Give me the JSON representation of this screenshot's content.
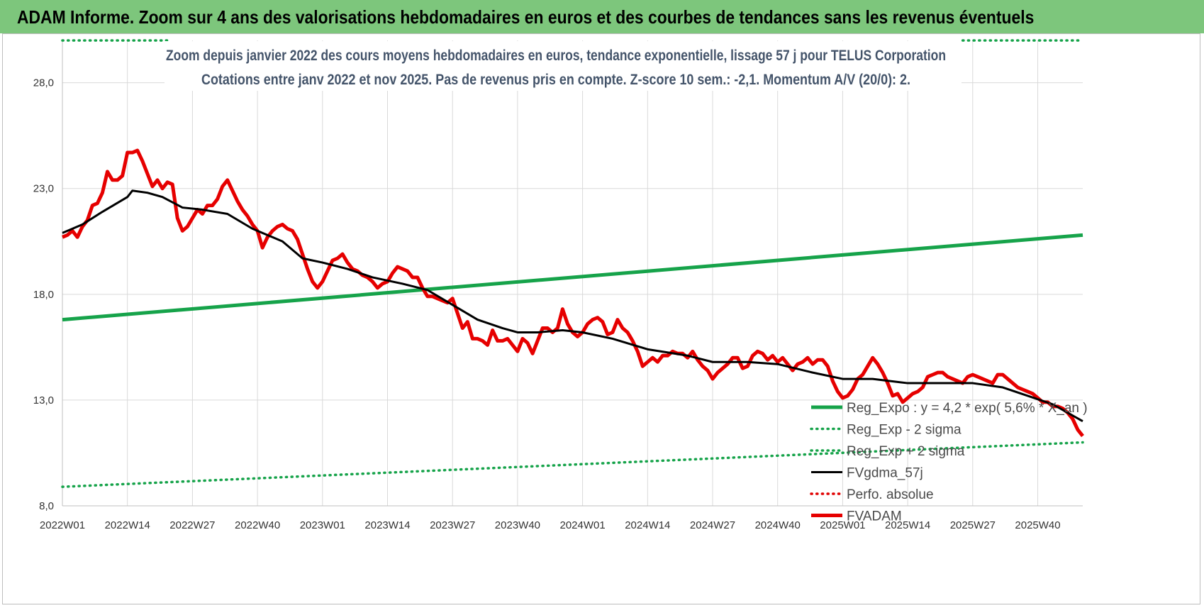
{
  "header": {
    "title": "ADAM Informe. Zoom sur 4 ans des valorisations hebdomadaires en euros et des courbes de tendances sans les revenus éventuels"
  },
  "chart_data": {
    "type": "line",
    "title_lines": [
      "Zoom depuis janvier 2022 des cours moyens hebdomadaires en euros, tendance exponentielle, lissage 57 j pour TELUS Corporation",
      "Cotations entre janv 2022 et nov 2025. Pas de revenus pris en compte. Z-score 10 sem.: -2,1. Momentum A/V (20/0): 2."
    ],
    "ylim": [
      8,
      30
    ],
    "yticks": [
      {
        "value": 8,
        "label": "8,0"
      },
      {
        "value": 13,
        "label": "13,0"
      },
      {
        "value": 18,
        "label": "18,0"
      },
      {
        "value": 23,
        "label": "23,0"
      },
      {
        "value": 28,
        "label": "28,0"
      }
    ],
    "xticks": [
      {
        "week": 0,
        "label": "2022W01"
      },
      {
        "week": 13,
        "label": "2022W14"
      },
      {
        "week": 26,
        "label": "2022W27"
      },
      {
        "week": 39,
        "label": "2022W40"
      },
      {
        "week": 52,
        "label": "2023W01"
      },
      {
        "week": 65,
        "label": "2023W14"
      },
      {
        "week": 78,
        "label": "2023W27"
      },
      {
        "week": 91,
        "label": "2023W40"
      },
      {
        "week": 104,
        "label": "2024W01"
      },
      {
        "week": 117,
        "label": "2024W14"
      },
      {
        "week": 130,
        "label": "2024W27"
      },
      {
        "week": 143,
        "label": "2024W40"
      },
      {
        "week": 156,
        "label": "2025W01"
      },
      {
        "week": 169,
        "label": "2025W14"
      },
      {
        "week": 182,
        "label": "2025W27"
      },
      {
        "week": 195,
        "label": "2025W40"
      }
    ],
    "x_range_weeks": [
      0,
      204
    ],
    "series": [
      {
        "name": "Reg_Expo : y = 4,2 * exp( 5,6% *  X_an )",
        "color": "#16a34a",
        "style": "solid",
        "points": [
          [
            0,
            16.8
          ],
          [
            204,
            20.8
          ]
        ]
      },
      {
        "name": "Reg_Exp - 2 sigma",
        "color": "#16a34a",
        "style": "dotted",
        "points": [
          [
            0,
            8.9
          ],
          [
            204,
            11.0
          ]
        ]
      },
      {
        "name": "Reg_Exp + 2 sigma",
        "color": "#16a34a",
        "style": "dotted",
        "points": [
          [
            0,
            30.0
          ],
          [
            21,
            30.0
          ],
          [
            180,
            30.0
          ],
          [
            204,
            30.0
          ]
        ]
      },
      {
        "name": "FVgdma_57j",
        "color": "#000000",
        "style": "solid",
        "points": [
          [
            0,
            20.9
          ],
          [
            4,
            21.3
          ],
          [
            8,
            21.9
          ],
          [
            13,
            22.6
          ],
          [
            14,
            22.9
          ],
          [
            17,
            22.8
          ],
          [
            20,
            22.6
          ],
          [
            24,
            22.1
          ],
          [
            28,
            22.0
          ],
          [
            33,
            21.8
          ],
          [
            38,
            21.1
          ],
          [
            44,
            20.5
          ],
          [
            48,
            19.7
          ],
          [
            52,
            19.5
          ],
          [
            57,
            19.2
          ],
          [
            62,
            18.8
          ],
          [
            68,
            18.5
          ],
          [
            73,
            18.2
          ],
          [
            78,
            17.5
          ],
          [
            83,
            16.8
          ],
          [
            88,
            16.4
          ],
          [
            91,
            16.2
          ],
          [
            95,
            16.2
          ],
          [
            100,
            16.3
          ],
          [
            104,
            16.2
          ],
          [
            110,
            15.9
          ],
          [
            117,
            15.4
          ],
          [
            125,
            15.1
          ],
          [
            130,
            14.8
          ],
          [
            137,
            14.8
          ],
          [
            143,
            14.7
          ],
          [
            150,
            14.3
          ],
          [
            156,
            14.0
          ],
          [
            162,
            14.0
          ],
          [
            169,
            13.8
          ],
          [
            176,
            13.8
          ],
          [
            182,
            13.8
          ],
          [
            188,
            13.6
          ],
          [
            193,
            13.2
          ],
          [
            198,
            12.8
          ],
          [
            204,
            12.0
          ]
        ]
      },
      {
        "name": "Perfo. absolue",
        "color": "#e00000",
        "style": "dotted",
        "points": []
      },
      {
        "name": "FVADAM",
        "color": "#e60000",
        "style": "solid",
        "points": [
          [
            0,
            20.7
          ],
          [
            1,
            20.8
          ],
          [
            2,
            21.0
          ],
          [
            3,
            20.7
          ],
          [
            4,
            21.2
          ],
          [
            5,
            21.5
          ],
          [
            6,
            22.2
          ],
          [
            7,
            22.3
          ],
          [
            8,
            22.8
          ],
          [
            9,
            23.8
          ],
          [
            10,
            23.4
          ],
          [
            11,
            23.4
          ],
          [
            12,
            23.6
          ],
          [
            13,
            24.7
          ],
          [
            14,
            24.7
          ],
          [
            15,
            24.8
          ],
          [
            16,
            24.3
          ],
          [
            17,
            23.7
          ],
          [
            18,
            23.1
          ],
          [
            19,
            23.4
          ],
          [
            20,
            23.0
          ],
          [
            21,
            23.3
          ],
          [
            22,
            23.2
          ],
          [
            23,
            21.6
          ],
          [
            24,
            21.0
          ],
          [
            25,
            21.2
          ],
          [
            26,
            21.6
          ],
          [
            27,
            22.0
          ],
          [
            28,
            21.8
          ],
          [
            29,
            22.2
          ],
          [
            30,
            22.2
          ],
          [
            31,
            22.5
          ],
          [
            32,
            23.1
          ],
          [
            33,
            23.4
          ],
          [
            34,
            22.9
          ],
          [
            35,
            22.4
          ],
          [
            36,
            22.0
          ],
          [
            37,
            21.7
          ],
          [
            38,
            21.3
          ],
          [
            39,
            21.0
          ],
          [
            40,
            20.2
          ],
          [
            41,
            20.7
          ],
          [
            42,
            21.0
          ],
          [
            43,
            21.2
          ],
          [
            44,
            21.3
          ],
          [
            45,
            21.1
          ],
          [
            46,
            21.0
          ],
          [
            47,
            20.6
          ],
          [
            48,
            19.9
          ],
          [
            49,
            19.2
          ],
          [
            50,
            18.6
          ],
          [
            51,
            18.3
          ],
          [
            52,
            18.6
          ],
          [
            53,
            19.1
          ],
          [
            54,
            19.6
          ],
          [
            55,
            19.7
          ],
          [
            56,
            19.9
          ],
          [
            57,
            19.5
          ],
          [
            58,
            19.2
          ],
          [
            59,
            19.1
          ],
          [
            60,
            18.9
          ],
          [
            61,
            18.8
          ],
          [
            62,
            18.6
          ],
          [
            63,
            18.3
          ],
          [
            64,
            18.5
          ],
          [
            65,
            18.6
          ],
          [
            66,
            19.0
          ],
          [
            67,
            19.3
          ],
          [
            68,
            19.2
          ],
          [
            69,
            19.1
          ],
          [
            70,
            18.8
          ],
          [
            71,
            18.8
          ],
          [
            72,
            18.3
          ],
          [
            73,
            17.9
          ],
          [
            74,
            17.9
          ],
          [
            75,
            17.8
          ],
          [
            76,
            17.7
          ],
          [
            77,
            17.6
          ],
          [
            78,
            17.8
          ],
          [
            79,
            17.1
          ],
          [
            80,
            16.4
          ],
          [
            81,
            16.7
          ],
          [
            82,
            15.9
          ],
          [
            83,
            15.9
          ],
          [
            84,
            15.8
          ],
          [
            85,
            15.6
          ],
          [
            86,
            16.3
          ],
          [
            87,
            15.8
          ],
          [
            88,
            15.8
          ],
          [
            89,
            15.9
          ],
          [
            90,
            15.6
          ],
          [
            91,
            15.3
          ],
          [
            92,
            15.9
          ],
          [
            93,
            15.7
          ],
          [
            94,
            15.2
          ],
          [
            95,
            15.8
          ],
          [
            96,
            16.4
          ],
          [
            97,
            16.4
          ],
          [
            98,
            16.2
          ],
          [
            99,
            16.4
          ],
          [
            100,
            17.3
          ],
          [
            101,
            16.6
          ],
          [
            102,
            16.2
          ],
          [
            103,
            16.0
          ],
          [
            104,
            16.2
          ],
          [
            105,
            16.6
          ],
          [
            106,
            16.8
          ],
          [
            107,
            16.9
          ],
          [
            108,
            16.7
          ],
          [
            109,
            16.1
          ],
          [
            110,
            16.2
          ],
          [
            111,
            16.8
          ],
          [
            112,
            16.4
          ],
          [
            113,
            16.2
          ],
          [
            114,
            15.8
          ],
          [
            115,
            15.3
          ],
          [
            116,
            14.6
          ],
          [
            117,
            14.8
          ],
          [
            118,
            15.0
          ],
          [
            119,
            14.8
          ],
          [
            120,
            15.1
          ],
          [
            121,
            15.1
          ],
          [
            122,
            15.3
          ],
          [
            123,
            15.2
          ],
          [
            124,
            15.2
          ],
          [
            125,
            15.0
          ],
          [
            126,
            15.3
          ],
          [
            127,
            14.9
          ],
          [
            128,
            14.6
          ],
          [
            129,
            14.4
          ],
          [
            130,
            14.0
          ],
          [
            131,
            14.3
          ],
          [
            132,
            14.5
          ],
          [
            133,
            14.7
          ],
          [
            134,
            15.0
          ],
          [
            135,
            15.0
          ],
          [
            136,
            14.5
          ],
          [
            137,
            14.6
          ],
          [
            138,
            15.1
          ],
          [
            139,
            15.3
          ],
          [
            140,
            15.2
          ],
          [
            141,
            14.9
          ],
          [
            142,
            15.1
          ],
          [
            143,
            14.8
          ],
          [
            144,
            15.0
          ],
          [
            145,
            14.7
          ],
          [
            146,
            14.4
          ],
          [
            147,
            14.7
          ],
          [
            148,
            14.8
          ],
          [
            149,
            15.0
          ],
          [
            150,
            14.7
          ],
          [
            151,
            14.9
          ],
          [
            152,
            14.9
          ],
          [
            153,
            14.6
          ],
          [
            154,
            13.9
          ],
          [
            155,
            13.4
          ],
          [
            156,
            13.1
          ],
          [
            157,
            13.2
          ],
          [
            158,
            13.5
          ],
          [
            159,
            14.0
          ],
          [
            160,
            14.2
          ],
          [
            161,
            14.6
          ],
          [
            162,
            15.0
          ],
          [
            163,
            14.7
          ],
          [
            164,
            14.3
          ],
          [
            165,
            13.8
          ],
          [
            166,
            13.2
          ],
          [
            167,
            13.3
          ],
          [
            168,
            12.9
          ],
          [
            169,
            13.1
          ],
          [
            170,
            13.3
          ],
          [
            171,
            13.4
          ],
          [
            172,
            13.6
          ],
          [
            173,
            14.1
          ],
          [
            174,
            14.2
          ],
          [
            175,
            14.3
          ],
          [
            176,
            14.3
          ],
          [
            177,
            14.1
          ],
          [
            178,
            14.0
          ],
          [
            179,
            13.9
          ],
          [
            180,
            13.8
          ],
          [
            181,
            14.1
          ],
          [
            182,
            14.2
          ],
          [
            183,
            14.1
          ],
          [
            184,
            14.0
          ],
          [
            185,
            13.9
          ],
          [
            186,
            13.8
          ],
          [
            187,
            14.2
          ],
          [
            188,
            14.2
          ],
          [
            189,
            14.0
          ],
          [
            190,
            13.8
          ],
          [
            191,
            13.6
          ],
          [
            192,
            13.5
          ],
          [
            193,
            13.4
          ],
          [
            194,
            13.3
          ],
          [
            195,
            13.1
          ],
          [
            196,
            12.9
          ],
          [
            197,
            12.9
          ],
          [
            198,
            12.7
          ],
          [
            199,
            12.7
          ],
          [
            200,
            12.6
          ],
          [
            201,
            12.4
          ],
          [
            202,
            12.1
          ],
          [
            203,
            11.6
          ],
          [
            204,
            11.3
          ]
        ]
      }
    ]
  }
}
